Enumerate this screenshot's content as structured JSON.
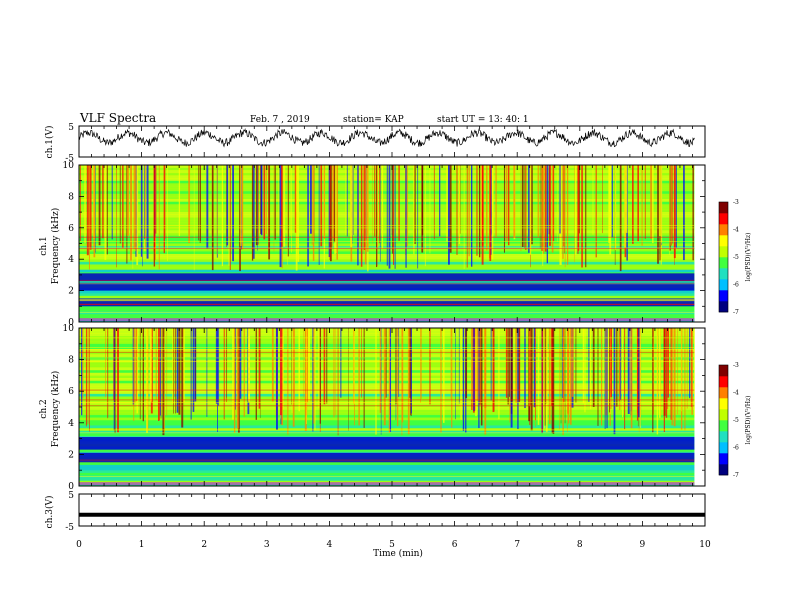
{
  "header": {
    "title": "VLF Spectra",
    "date": "Feb. 7 , 2019",
    "station": "station= KAP",
    "start": "start  UT =   13: 40: 1"
  },
  "chart_data": [
    {
      "type": "line",
      "ylabel": "ch.1(V)",
      "ylim": [
        -5,
        5
      ],
      "yticks": [
        "5",
        "-5"
      ],
      "description": "oscillating voltage trace around ~+1 V with noise",
      "xlim": [
        0,
        10
      ]
    },
    {
      "type": "heatmap",
      "ylabel_lines": [
        "ch.1",
        "Frequency (kHz)"
      ],
      "ylim": [
        0,
        10
      ],
      "yticks": [
        "0",
        "2",
        "4",
        "6",
        "8",
        "10"
      ],
      "xlim": [
        0,
        10
      ],
      "data_end_min": 9.83,
      "colorbar": {
        "label": "log(PSD)(V²/Hz)",
        "ticks": [
          "-3",
          "-4",
          "-5",
          "-6",
          "-7"
        ],
        "range": [
          -7,
          -3
        ]
      },
      "dark_bands_khz": [
        [
          2.6,
          3.1
        ],
        [
          2.0,
          2.5
        ],
        [
          1.0,
          1.5
        ]
      ]
    },
    {
      "type": "heatmap",
      "ylabel_lines": [
        "ch.2",
        "Frequency (kHz)"
      ],
      "ylim": [
        0,
        10
      ],
      "yticks": [
        "0",
        "2",
        "4",
        "6",
        "8",
        "10"
      ],
      "xlim": [
        0,
        10
      ],
      "data_end_min": 9.83,
      "colorbar": {
        "label": "log(PSD)(V²/Hz)",
        "ticks": [
          "-3",
          "-4",
          "-5",
          "-6",
          "-7"
        ],
        "range": [
          -7,
          -3
        ]
      },
      "dark_bands_khz": [
        [
          2.3,
          3.1
        ],
        [
          1.5,
          2.1
        ]
      ]
    },
    {
      "type": "line",
      "ylabel": "ch.3(V)",
      "ylim": [
        -5,
        5
      ],
      "yticks": [
        "5",
        "-5"
      ],
      "xlim": [
        0,
        10
      ],
      "constant_value": -1.5
    }
  ],
  "xaxis": {
    "label": "Time  (min)",
    "ticks": [
      "0",
      "1",
      "2",
      "3",
      "4",
      "5",
      "6",
      "7",
      "8",
      "9",
      "10"
    ]
  },
  "colors": {
    "cmap": [
      "#00007f",
      "#0000ff",
      "#00bfff",
      "#20e0c0",
      "#40ff40",
      "#c0ff00",
      "#ffff00",
      "#ff8000",
      "#ff0000",
      "#7f0000"
    ]
  }
}
